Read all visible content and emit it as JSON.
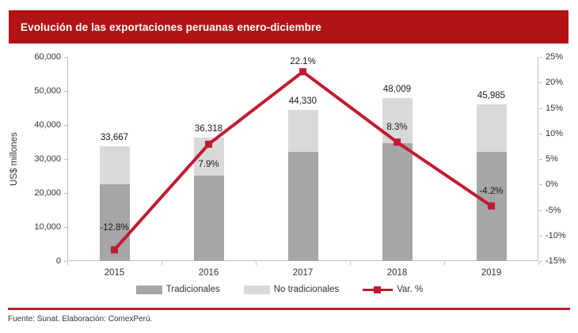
{
  "header": {
    "title": "Evolución de las exportaciones peruanas enero-diciembre"
  },
  "chart_data": {
    "type": "bar",
    "subtype": "stacked-bar-with-line",
    "title": "Evolución de las exportaciones peruanas enero-diciembre",
    "categories": [
      "2015",
      "2016",
      "2017",
      "2018",
      "2019"
    ],
    "series": [
      {
        "name": "Tradicionales",
        "type": "bar",
        "stack": "exports",
        "color": "#a6a6a6",
        "values": [
          22500,
          25200,
          32100,
          34700,
          32200
        ]
      },
      {
        "name": "No tradicionales",
        "type": "bar",
        "stack": "exports",
        "color": "#d9d9d9",
        "values": [
          11167,
          11118,
          12230,
          13309,
          13785
        ]
      },
      {
        "name": "Var. %",
        "type": "line",
        "axis": "right",
        "color": "#c11a33",
        "values": [
          -12.8,
          7.9,
          22.1,
          8.3,
          -4.2
        ]
      }
    ],
    "totals": [
      33667,
      36318,
      44330,
      48009,
      45985
    ],
    "total_labels": [
      "33,667",
      "36,318",
      "44,330",
      "48,009",
      "45,985"
    ],
    "var_labels": [
      "-12.8%",
      "7.9%",
      "22.1%",
      "8.3%",
      "-4.2%"
    ],
    "left_axis": {
      "label": "US$ millones",
      "min": 0,
      "max": 60000,
      "step": 10000,
      "tick_labels": [
        "0",
        "10,000",
        "20,000",
        "30,000",
        "40,000",
        "50,000",
        "60,000"
      ]
    },
    "right_axis": {
      "min": -15,
      "max": 25,
      "step": 5,
      "tick_labels": [
        "-15%",
        "-10%",
        "-5%",
        "0%",
        "5%",
        "10%",
        "15%",
        "20%",
        "25%"
      ]
    },
    "grid": false,
    "legend_position": "bottom"
  },
  "legend": {
    "items": [
      {
        "label": "Tradicionales",
        "swatch": "bar-dark-swatch"
      },
      {
        "label": "No tradicionales",
        "swatch": "bar-light-swatch"
      },
      {
        "label": "Var. %",
        "swatch": "red-line-swatch"
      }
    ]
  },
  "footer": {
    "source": "Fuente: Sunat. Elaboración: ComexPerú."
  },
  "colors": {
    "header_red": "#b21317",
    "line_red": "#c11a33",
    "bar_dark": "#a6a6a6",
    "bar_light": "#d9d9d9",
    "axis_gray": "#bfbfbf"
  }
}
